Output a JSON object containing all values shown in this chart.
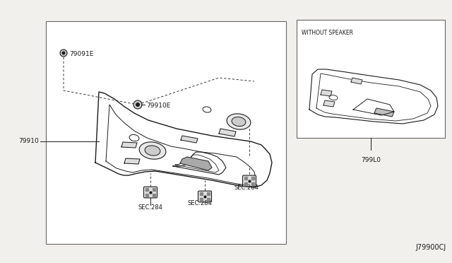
{
  "bg_color": "#f2f0ec",
  "line_color": "#1a1a1a",
  "diagram_code": "J79900CJ",
  "inset_label": "WITHOUT SPEAKER",
  "part_79910E": "79910E",
  "part_79091E": "79091E",
  "part_79910": "79910",
  "part_799L0": "799L0",
  "sec284": "SEC.284"
}
